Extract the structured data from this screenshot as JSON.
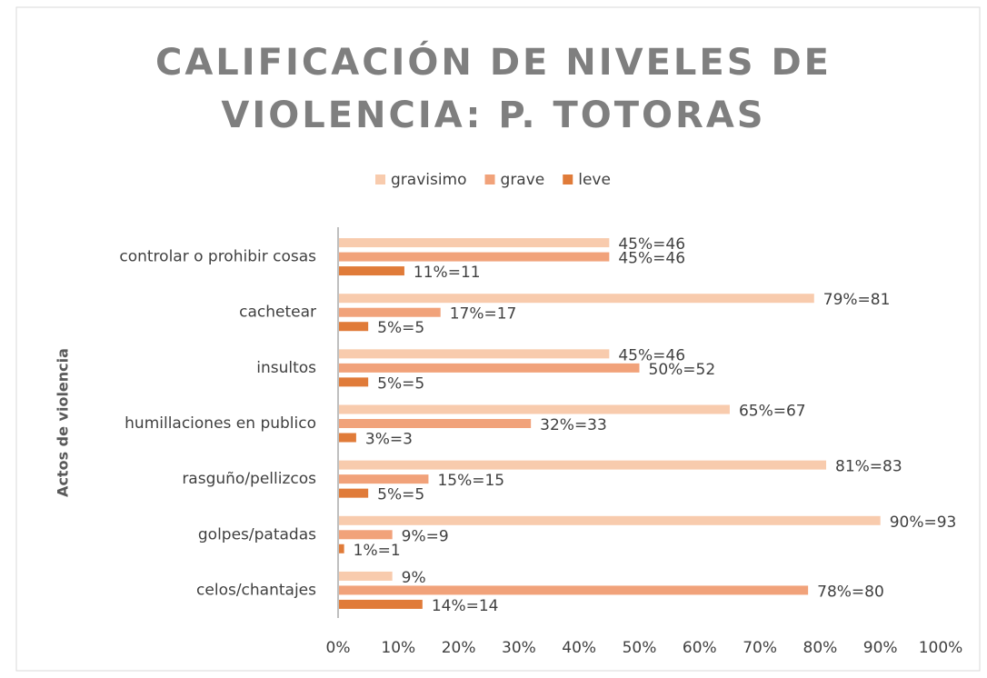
{
  "chart_data": {
    "type": "bar",
    "orientation": "horizontal",
    "title": "CALIFICACIÓN DE NIVELES DE VIOLENCIA: P. TOTORAS",
    "y_label": "Actos de violencia",
    "categories": [
      "controlar o prohibir cosas",
      "cachetear",
      "insultos",
      "humillaciones en publico",
      "rasguño/pellizcos",
      "golpes/patadas",
      "celos/chantajes"
    ],
    "series": [
      {
        "name": "gravisimo",
        "color": "#f8cbad",
        "values": [
          45,
          79,
          45,
          65,
          81,
          90,
          9
        ],
        "value_labels": [
          "45%=46",
          "79%=81",
          "45%=46",
          "65%=67",
          "81%=83",
          "90%=93",
          "9%"
        ]
      },
      {
        "name": "grave",
        "color": "#f1a27a",
        "values": [
          45,
          17,
          50,
          32,
          15,
          9,
          78
        ],
        "value_labels": [
          "45%=46",
          "17%=17",
          "50%=52",
          "32%=33",
          "15%=15",
          "9%=9",
          "78%=80"
        ]
      },
      {
        "name": "leve",
        "color": "#e07b39",
        "values": [
          11,
          5,
          5,
          3,
          5,
          1,
          14
        ],
        "value_labels": [
          "11%=11",
          "5%=5",
          "5%=5",
          "3%=3",
          "5%=5",
          "1%=1",
          "14%=14"
        ]
      }
    ],
    "xlim": [
      0,
      100
    ],
    "xticks": [
      {
        "value": 0,
        "label": "0%"
      },
      {
        "value": 10,
        "label": "10%"
      },
      {
        "value": 20,
        "label": "20%"
      },
      {
        "value": 30,
        "label": "30%"
      },
      {
        "value": 40,
        "label": "40%"
      },
      {
        "value": 50,
        "label": "50%"
      },
      {
        "value": 60,
        "label": "60%"
      },
      {
        "value": 70,
        "label": "70%"
      },
      {
        "value": 80,
        "label": "80%"
      },
      {
        "value": 90,
        "label": "90%"
      },
      {
        "value": 100,
        "label": "100%"
      }
    ],
    "legend": "top",
    "grid": false
  }
}
